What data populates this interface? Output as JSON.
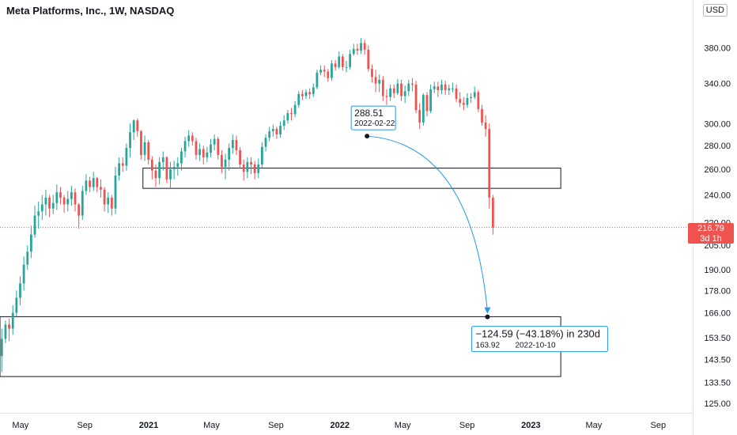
{
  "header": {
    "title": "Meta Platforms, Inc., 1W, NASDAQ",
    "currency": "USD"
  },
  "last_price": {
    "value": "216.79",
    "countdown": "3d 1h"
  },
  "measure_start": {
    "price": "288.51",
    "date": "2022-02-22"
  },
  "measure_end": {
    "change": "−124.59 (−43.18%) in 230d",
    "price": "163.92",
    "date": "2022-10-10"
  },
  "colors": {
    "up": "#26a69a",
    "down": "#ef5350",
    "arrow": "#2196f3",
    "last": "#ef5350"
  },
  "chart_data": {
    "type": "candlestick",
    "y_scale": "log",
    "ylim": [
      122,
      410
    ],
    "y_ticks": [
      380,
      340,
      300,
      280,
      260,
      240,
      220,
      205,
      190,
      178,
      166,
      153.5,
      143.5,
      133.5,
      125
    ],
    "y_tick_labels": [
      "380.00",
      "340.00",
      "300.00",
      "280.00",
      "260.00",
      "240.00",
      "220.00",
      "205.00",
      "190.00",
      "178.00",
      "166.00",
      "153.50",
      "143.50",
      "133.50",
      "125.00"
    ],
    "x_ticks": [
      "May",
      "Sep",
      "2021",
      "May",
      "Sep",
      "2022",
      "May",
      "Sep",
      "2023",
      "May",
      "Sep"
    ],
    "x_range": [
      "2020-03-23",
      "2023-11-06"
    ],
    "grid": false,
    "zones": [
      {
        "from": "2020-12-21",
        "to": "2023-02-27",
        "low": 245,
        "high": 261
      },
      {
        "from": "2020-03-23",
        "to": "2023-02-27",
        "low": 136,
        "high": 164
      }
    ],
    "series": [
      {
        "week_start": "2020-03-23",
        "close": [
          153,
          160,
          158,
          166,
          174,
          182,
          193,
          201,
          212,
          225,
          228,
          233,
          238,
          230,
          234,
          242,
          238,
          233,
          237,
          242,
          233,
          225,
          243,
          251,
          246,
          253,
          246,
          244,
          233,
          238,
          230,
          255,
          265,
          263,
          278,
          292,
          303,
          293,
          272,
          283,
          268,
          259,
          253,
          266,
          270,
          252,
          260,
          262,
          265,
          275,
          284,
          289,
          284,
          272,
          277,
          270,
          274,
          281,
          286,
          272,
          262,
          268,
          278,
          285,
          276,
          264,
          258,
          266,
          264,
          257,
          264,
          279,
          287,
          293,
          295,
          290,
          298,
          303,
          310,
          309,
          318,
          329,
          327,
          331,
          329,
          336,
          352,
          355,
          353,
          346,
          362,
          358,
          370,
          358,
          358,
          373,
          379,
          377,
          386,
          378,
          356,
          347,
          340,
          344,
          327,
          326,
          335,
          330,
          340,
          327,
          332,
          340,
          339,
          313,
          301,
          328,
          312,
          334,
          337,
          333,
          339,
          333,
          335,
          335,
          324,
          320,
          318,
          325,
          326,
          331,
          314,
          301,
          295,
          238,
          216.79
        ],
        "high": [
          158,
          162,
          163,
          170,
          178,
          186,
          198,
          205,
          218,
          232,
          235,
          240,
          244,
          240,
          240,
          248,
          246,
          240,
          243,
          247,
          245,
          234,
          247,
          256,
          254,
          258,
          254,
          252,
          246,
          242,
          240,
          262,
          270,
          270,
          282,
          300,
          304,
          305,
          294,
          289,
          285,
          271,
          264,
          270,
          275,
          271,
          266,
          267,
          270,
          278,
          288,
          294,
          292,
          287,
          282,
          280,
          279,
          286,
          290,
          288,
          276,
          273,
          282,
          290,
          289,
          279,
          268,
          270,
          270,
          267,
          269,
          283,
          290,
          297,
          299,
          297,
          302,
          308,
          313,
          315,
          322,
          332,
          333,
          334,
          335,
          340,
          355,
          360,
          360,
          356,
          366,
          366,
          376,
          373,
          365,
          378,
          385,
          385,
          392,
          390,
          383,
          361,
          355,
          350,
          348,
          334,
          339,
          339,
          345,
          344,
          338,
          344,
          346,
          343,
          320,
          330,
          331,
          339,
          342,
          342,
          344,
          343,
          339,
          341,
          339,
          331,
          326,
          330,
          330,
          337,
          333,
          318,
          308,
          300,
          240
        ],
        "low": [
          138,
          151,
          152,
          155,
          164,
          170,
          178,
          190,
          197,
          210,
          216,
          222,
          225,
          224,
          226,
          229,
          233,
          227,
          228,
          232,
          228,
          216,
          222,
          240,
          242,
          243,
          242,
          238,
          228,
          227,
          225,
          226,
          251,
          258,
          259,
          270,
          285,
          288,
          268,
          267,
          264,
          252,
          246,
          248,
          259,
          249,
          245,
          252,
          255,
          259,
          270,
          279,
          280,
          268,
          267,
          264,
          266,
          270,
          276,
          268,
          257,
          252,
          259,
          273,
          272,
          261,
          251,
          253,
          256,
          252,
          253,
          261,
          275,
          284,
          288,
          286,
          287,
          294,
          300,
          303,
          306,
          315,
          323,
          324,
          324,
          326,
          334,
          349,
          347,
          342,
          343,
          354,
          356,
          354,
          352,
          355,
          371,
          372,
          373,
          372,
          353,
          341,
          331,
          331,
          322,
          318,
          322,
          325,
          328,
          322,
          320,
          327,
          332,
          310,
          295,
          298,
          307,
          310,
          330,
          326,
          329,
          328,
          328,
          331,
          321,
          316,
          313,
          315,
          320,
          324,
          311,
          298,
          288,
          230,
          212
        ]
      }
    ]
  }
}
